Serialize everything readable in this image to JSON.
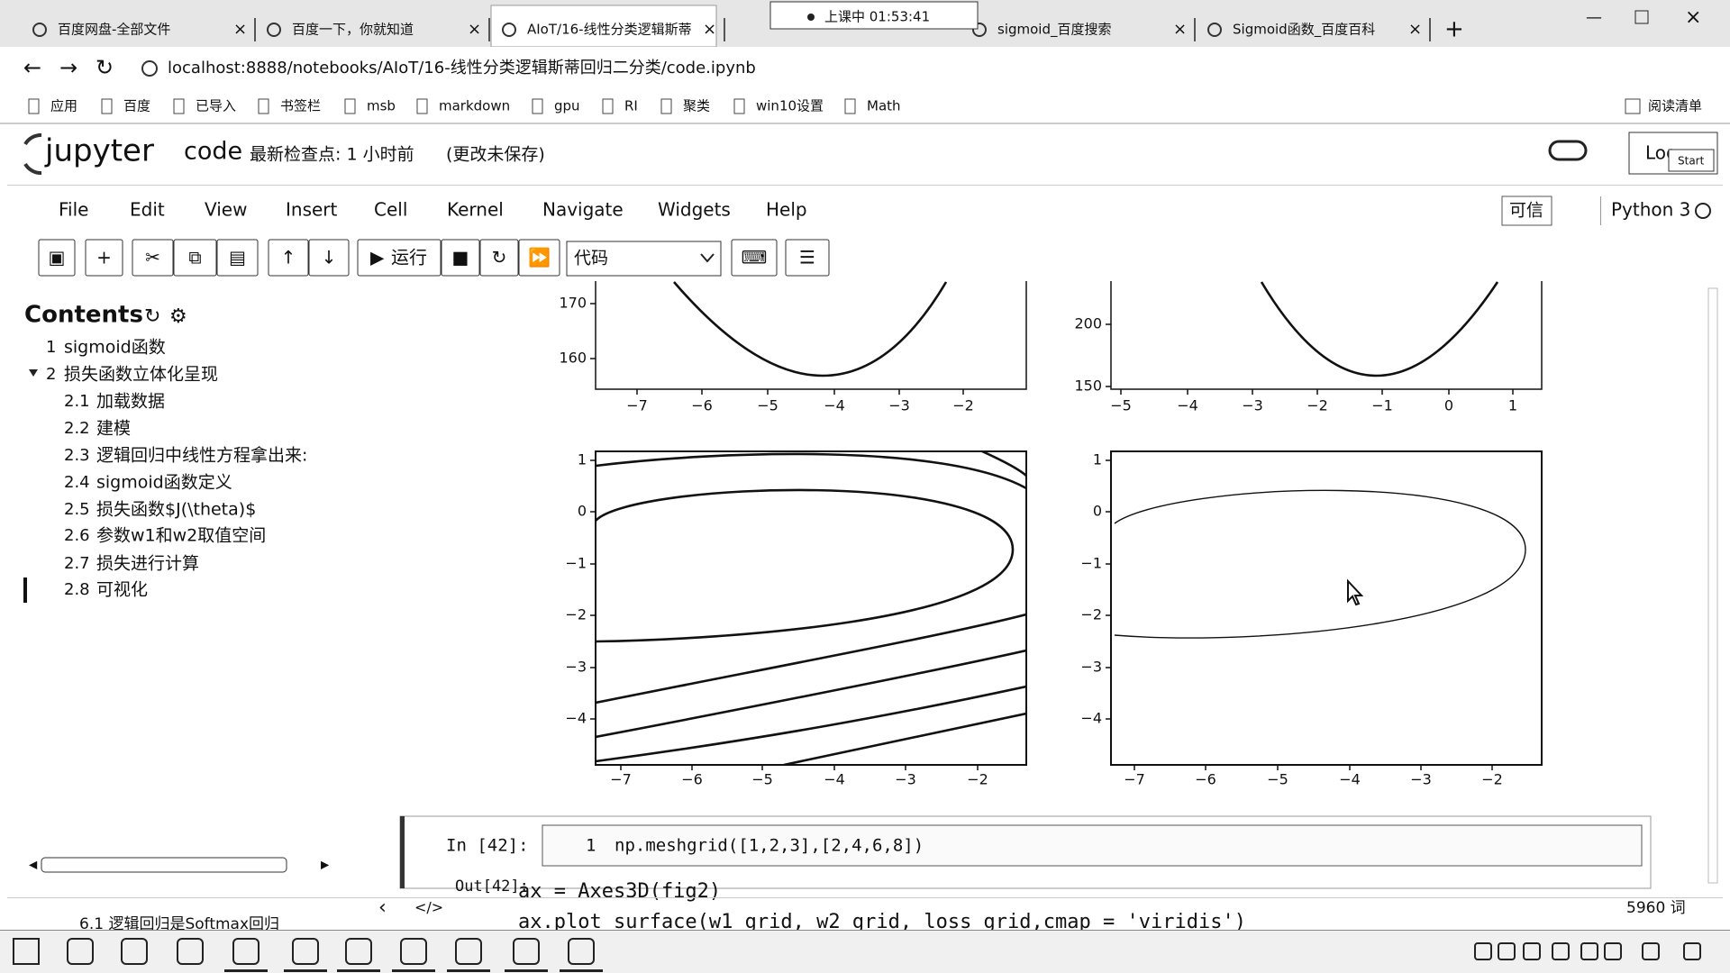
{
  "browser": {
    "tabs": [
      "百度网盘-全部文件",
      "百度一下，你就知道",
      "AIoT/16-线性分类逻辑斯蒂",
      "sigmoid_百度搜索",
      "Sigmoid函数_百度百科"
    ],
    "timer": "上课中 01:53:41",
    "url": "localhost:8888/notebooks/AIoT/16-线性分类逻辑斯蒂回归二分类/code.ipynb",
    "bookmarks": [
      "应用",
      "百度",
      "已导入",
      "书签栏",
      "msb",
      "markdown",
      "gpu",
      "RI",
      "聚类",
      "win10设置",
      "Math"
    ],
    "reading_list": "阅读清单"
  },
  "jupyter": {
    "logo": "jupyter",
    "notebook": "code",
    "checkpoint": "最新检查点: 1 小时前",
    "unsaved": "(更改未保存)",
    "logout": "Log",
    "popup": "Start"
  },
  "menu": [
    "File",
    "Edit",
    "View",
    "Insert",
    "Cell",
    "Kernel",
    "Navigate",
    "Widgets",
    "Help"
  ],
  "trusted": "可信",
  "kernel": "Python 3",
  "toolbar": {
    "run": "运行",
    "cell_type": "代码"
  },
  "toc": {
    "title": "Contents",
    "items": [
      {
        "num": "1",
        "title": "sigmoid函数"
      },
      {
        "num": "2",
        "title": "损失函数立体化呈现"
      },
      {
        "num": "2.1",
        "title": "加载数据"
      },
      {
        "num": "2.2",
        "title": "建模"
      },
      {
        "num": "2.3",
        "title": "逻辑回归中线性方程拿出来:"
      },
      {
        "num": "2.4",
        "title": "sigmoid函数定义"
      },
      {
        "num": "2.5",
        "title": "损失函数$J(\\theta)$"
      },
      {
        "num": "2.6",
        "title": "参数w1和w2取值空间"
      },
      {
        "num": "2.7",
        "title": "损失进行计算"
      },
      {
        "num": "2.8",
        "title": "可视化"
      }
    ]
  },
  "plots": [
    {
      "xticks": [
        "−7",
        "−6",
        "−5",
        "−4",
        "−3",
        "−2"
      ],
      "yticks": [
        "170",
        "160"
      ]
    },
    {
      "xticks": [
        "−5",
        "−4",
        "−3",
        "−2",
        "−1",
        "0",
        "1"
      ],
      "yticks": [
        "200",
        "150"
      ]
    },
    {
      "xticks": [
        "−7",
        "−6",
        "−5",
        "−4",
        "−3",
        "−2"
      ],
      "yticks": [
        "1",
        "0",
        "−1",
        "−2",
        "−3",
        "−4"
      ]
    },
    {
      "xticks": [
        "−7",
        "−6",
        "−5",
        "−4",
        "−3",
        "−2"
      ],
      "yticks": [
        "1",
        "0",
        "−1",
        "−2",
        "−3",
        "−4"
      ]
    }
  ],
  "cell": {
    "prompt": "In [42]:",
    "line_number": "1",
    "code": "np.meshgrid([1,2,3],[2,4,6,8])",
    "out_prompt": "Out[42]:"
  },
  "overlay": [
    "ax = Axes3D(fig2)",
    "ax.plot_surface(w1_grid, w2_grid, loss_grid,cmap = 'viridis')"
  ],
  "status": {
    "word_count": "5960 词",
    "toc_hint": "6.1 逻辑回归是Softmax回归"
  }
}
